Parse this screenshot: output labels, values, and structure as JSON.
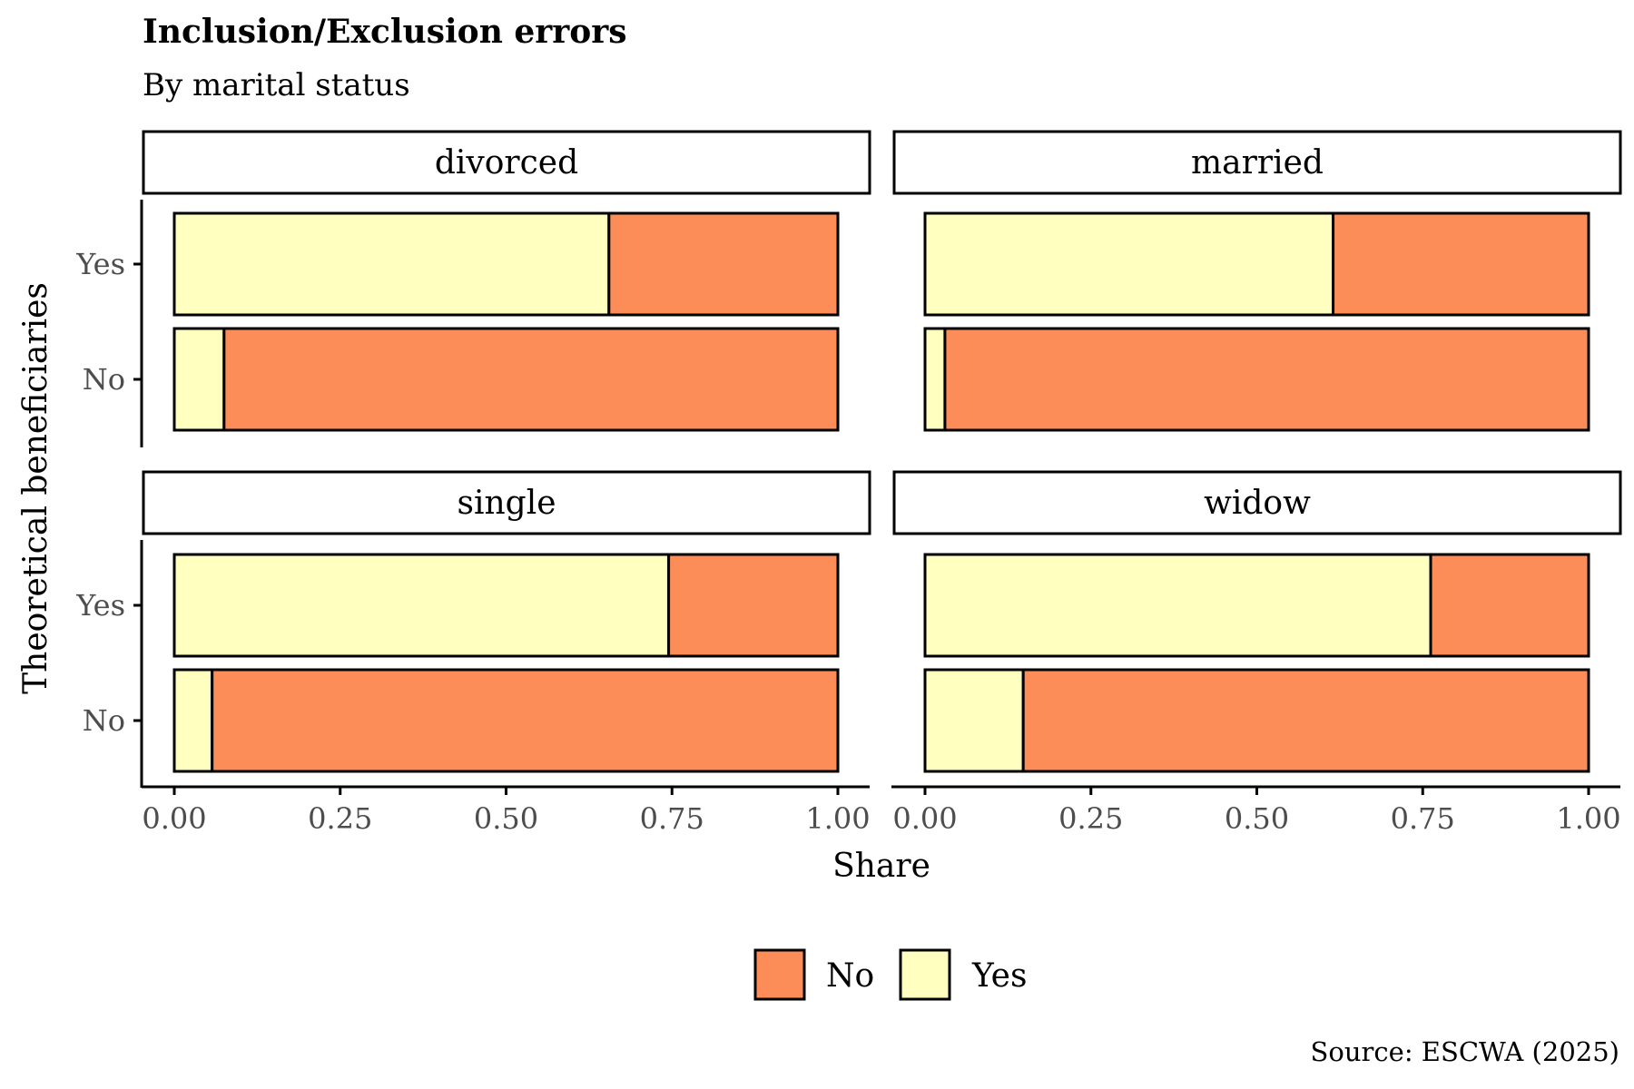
{
  "title": "Inclusion/Exclusion errors",
  "subtitle": "By marital status",
  "caption": "Source: ESCWA (2025)",
  "colors": {
    "No": "#fc8d59",
    "Yes": "#ffffbf"
  },
  "chart_data": {
    "type": "bar",
    "orientation": "horizontal",
    "stacked": true,
    "facet_by": "marital status",
    "xlabel": "Share",
    "ylabel": "Theoretical beneficiaries",
    "xlim": [
      0,
      1
    ],
    "xticks": [
      "0.00",
      "0.25",
      "0.50",
      "0.75",
      "1.00"
    ],
    "categories": [
      "Yes",
      "No"
    ],
    "legend": {
      "position": "bottom",
      "entries": [
        "No",
        "Yes"
      ]
    },
    "panels": [
      {
        "name": "divorced",
        "series": [
          {
            "name": "Yes",
            "values": [
              0.655,
              0.075
            ]
          },
          {
            "name": "No",
            "values": [
              0.345,
              0.925
            ]
          }
        ]
      },
      {
        "name": "married",
        "series": [
          {
            "name": "Yes",
            "values": [
              0.615,
              0.03
            ]
          },
          {
            "name": "No",
            "values": [
              0.385,
              0.97
            ]
          }
        ]
      },
      {
        "name": "single",
        "series": [
          {
            "name": "Yes",
            "values": [
              0.745,
              0.057
            ]
          },
          {
            "name": "No",
            "values": [
              0.255,
              0.943
            ]
          }
        ]
      },
      {
        "name": "widow",
        "series": [
          {
            "name": "Yes",
            "values": [
              0.762,
              0.148
            ]
          },
          {
            "name": "No",
            "values": [
              0.238,
              0.852
            ]
          }
        ]
      }
    ]
  }
}
